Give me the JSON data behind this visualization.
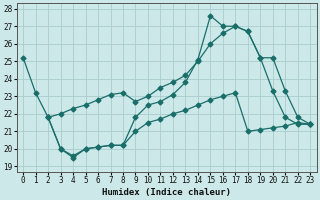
{
  "xlabel": "Humidex (Indice chaleur)",
  "bg_color": "#cce8e8",
  "grid_color": "#aacccc",
  "line_color": "#1a6e6a",
  "xlim": [
    -0.5,
    23.5
  ],
  "ylim": [
    18.7,
    28.3
  ],
  "xticks": [
    0,
    1,
    2,
    3,
    4,
    5,
    6,
    7,
    8,
    9,
    10,
    11,
    12,
    13,
    14,
    15,
    16,
    17,
    18,
    19,
    20,
    21,
    22,
    23
  ],
  "yticks": [
    19,
    20,
    21,
    22,
    23,
    24,
    25,
    26,
    27,
    28
  ],
  "line1_x": [
    0,
    1,
    2,
    3,
    4,
    5,
    6,
    7,
    8,
    9,
    10,
    11,
    12,
    13,
    14,
    15,
    16,
    17,
    18,
    19,
    20,
    21,
    22,
    23
  ],
  "line1_y": [
    25.2,
    23.2,
    21.8,
    20.0,
    19.5,
    20.0,
    20.1,
    20.2,
    20.2,
    21.8,
    22.5,
    22.7,
    23.1,
    23.8,
    25.1,
    27.6,
    27.0,
    27.0,
    26.7,
    25.2,
    23.3,
    21.8,
    21.4,
    21.4
  ],
  "line2_x": [
    2,
    3,
    4,
    5,
    6,
    7,
    8,
    9,
    10,
    11,
    12,
    13,
    14,
    15,
    16,
    17,
    18,
    19,
    20,
    21,
    22,
    23
  ],
  "line2_y": [
    21.8,
    22.0,
    22.3,
    22.5,
    22.8,
    23.1,
    23.2,
    22.7,
    23.0,
    23.5,
    23.8,
    24.2,
    25.0,
    26.0,
    26.6,
    27.0,
    26.7,
    25.2,
    25.2,
    23.3,
    21.8,
    21.4
  ],
  "line3_x": [
    2,
    3,
    4,
    5,
    6,
    7,
    8,
    9,
    10,
    11,
    12,
    13,
    14,
    15,
    16,
    17,
    18,
    19,
    20,
    21,
    22,
    23
  ],
  "line3_y": [
    21.8,
    20.0,
    19.6,
    20.0,
    20.1,
    20.2,
    20.2,
    21.0,
    21.5,
    21.7,
    22.0,
    22.2,
    22.5,
    22.8,
    23.0,
    23.2,
    21.0,
    21.1,
    21.2,
    21.3,
    21.5,
    21.4
  ]
}
